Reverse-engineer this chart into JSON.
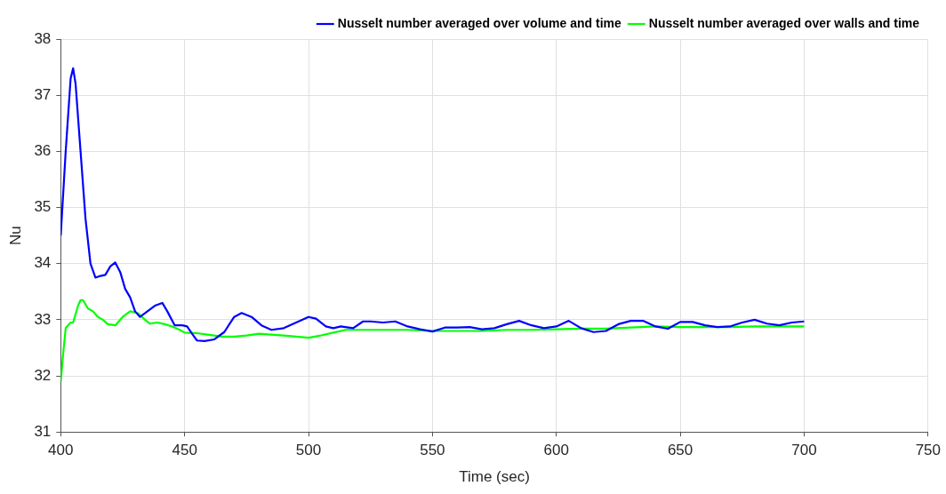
{
  "chart_data": {
    "type": "line",
    "xlabel": "Time (sec)",
    "ylabel": "Nu",
    "xlim": [
      400,
      750
    ],
    "xticks": [
      400,
      450,
      500,
      550,
      600,
      650,
      700,
      750
    ],
    "ylim": [
      31,
      38
    ],
    "yticks": [
      31,
      32,
      33,
      34,
      35,
      36,
      37,
      38
    ],
    "grid": true,
    "legend": "top right",
    "marker": "none",
    "line_style": "solid",
    "series": [
      {
        "name": "Nusselt number averaged over volume and time",
        "color": "#0000ff",
        "x": [
          400,
          402,
          404,
          405,
          406,
          408,
          410,
          412,
          414,
          416,
          418,
          420,
          422,
          424,
          426,
          428,
          430,
          432,
          435,
          438,
          441,
          443,
          446,
          449,
          451,
          453,
          455,
          458,
          462,
          466,
          470,
          473,
          477,
          481,
          485,
          490,
          495,
          500,
          503,
          507,
          510,
          513,
          518,
          522,
          525,
          530,
          535,
          540,
          545,
          550,
          555,
          560,
          565,
          570,
          575,
          580,
          585,
          590,
          595,
          600,
          605,
          610,
          615,
          620,
          625,
          630,
          635,
          640,
          645,
          650,
          655,
          660,
          665,
          670,
          675,
          680,
          685,
          690,
          695,
          700
        ],
        "values": [
          34.5,
          36.0,
          37.3,
          37.48,
          37.2,
          36.0,
          34.8,
          34.0,
          33.75,
          33.78,
          33.8,
          33.95,
          34.02,
          33.85,
          33.55,
          33.4,
          33.15,
          33.05,
          33.15,
          33.25,
          33.3,
          33.15,
          32.9,
          32.9,
          32.88,
          32.75,
          32.63,
          32.62,
          32.65,
          32.78,
          33.05,
          33.12,
          33.05,
          32.9,
          32.82,
          32.85,
          32.95,
          33.05,
          33.02,
          32.88,
          32.85,
          32.88,
          32.85,
          32.97,
          32.97,
          32.95,
          32.97,
          32.88,
          32.83,
          32.79,
          32.86,
          32.86,
          32.87,
          32.83,
          32.85,
          32.92,
          32.98,
          32.9,
          32.85,
          32.88,
          32.98,
          32.85,
          32.78,
          32.8,
          32.92,
          32.98,
          32.98,
          32.88,
          32.84,
          32.96,
          32.96,
          32.9,
          32.87,
          32.88,
          32.95,
          33.0,
          32.93,
          32.9,
          32.95,
          32.97
        ]
      },
      {
        "name": "Nusselt number averaged over walls and time",
        "color": "#00ff00",
        "x": [
          400,
          401,
          402,
          404,
          405,
          407,
          408,
          409,
          411,
          413,
          415,
          417,
          419,
          422,
          425,
          428,
          431,
          434,
          436,
          439,
          442,
          445,
          448,
          450,
          455,
          460,
          465,
          470,
          475,
          480,
          490,
          495,
          500,
          505,
          510,
          515,
          520,
          530,
          540,
          550,
          560,
          570,
          580,
          590,
          600,
          610,
          620,
          630,
          640,
          650,
          660,
          670,
          680,
          690,
          700
        ],
        "values": [
          31.9,
          32.4,
          32.85,
          32.95,
          32.95,
          33.25,
          33.35,
          33.35,
          33.2,
          33.15,
          33.05,
          33.0,
          32.92,
          32.9,
          33.05,
          33.15,
          33.12,
          33.0,
          32.93,
          32.95,
          32.92,
          32.88,
          32.82,
          32.77,
          32.76,
          32.73,
          32.7,
          32.7,
          32.72,
          32.75,
          32.72,
          32.7,
          32.68,
          32.72,
          32.77,
          32.82,
          32.82,
          32.82,
          32.82,
          32.8,
          32.8,
          32.8,
          32.82,
          32.82,
          32.83,
          32.84,
          32.84,
          32.86,
          32.88,
          32.87,
          32.87,
          32.87,
          32.88,
          32.88,
          32.88
        ]
      }
    ]
  }
}
